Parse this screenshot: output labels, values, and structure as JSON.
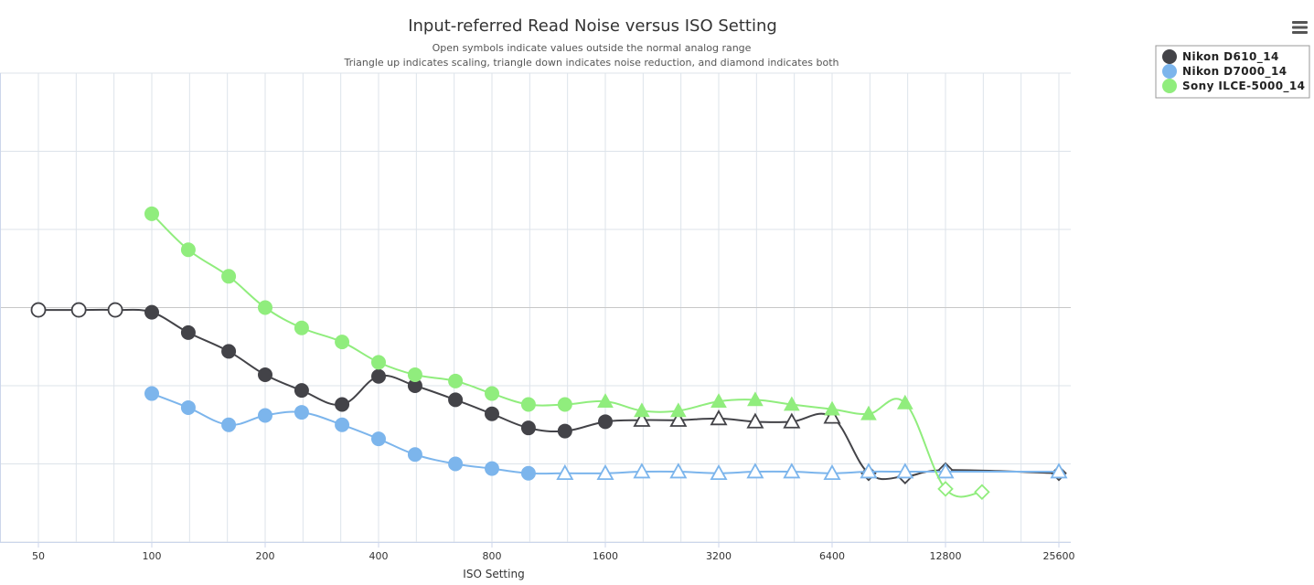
{
  "chart_data": {
    "type": "line",
    "title": "Input-referred Read Noise versus ISO Setting",
    "subtitle_lines": [
      "Open symbols indicate values outside the normal analog range",
      "Triangle up indicates scaling, triangle down indicates noise reduction, and diamond indicates both"
    ],
    "xlabel": "ISO Setting",
    "ylabel": "",
    "x_scale": "log2",
    "xlim": [
      50,
      25600
    ],
    "x_ticks": [
      50,
      100,
      200,
      400,
      800,
      1600,
      3200,
      6400,
      12800,
      25600
    ],
    "x_tick_labels": [
      "50",
      "100",
      "200",
      "400",
      "800",
      "1600",
      "3200",
      "6400",
      "12800",
      "25600"
    ],
    "y_scale": "log",
    "ylim_decades": [
      -1.5,
      1.5
    ],
    "y_gridlines_at_half_decades": true,
    "grid": true,
    "legend_position": "top-right",
    "menu_icon": "hamburger-menu-icon",
    "series": [
      {
        "name": "Nikon D610_14",
        "color": "#434348",
        "points": [
          {
            "x": 50,
            "y_decade": -0.015,
            "marker": "circle",
            "open": true
          },
          {
            "x": 64,
            "y_decade": -0.015,
            "marker": "circle",
            "open": true
          },
          {
            "x": 80,
            "y_decade": -0.015,
            "marker": "circle",
            "open": true
          },
          {
            "x": 100,
            "y_decade": -0.03,
            "marker": "circle",
            "open": false
          },
          {
            "x": 125,
            "y_decade": -0.16,
            "marker": "circle",
            "open": false
          },
          {
            "x": 160,
            "y_decade": -0.28,
            "marker": "circle",
            "open": false
          },
          {
            "x": 200,
            "y_decade": -0.43,
            "marker": "circle",
            "open": false
          },
          {
            "x": 250,
            "y_decade": -0.53,
            "marker": "circle",
            "open": false
          },
          {
            "x": 320,
            "y_decade": -0.62,
            "marker": "circle",
            "open": false
          },
          {
            "x": 400,
            "y_decade": -0.44,
            "marker": "circle",
            "open": false
          },
          {
            "x": 500,
            "y_decade": -0.5,
            "marker": "circle",
            "open": false
          },
          {
            "x": 640,
            "y_decade": -0.59,
            "marker": "circle",
            "open": false
          },
          {
            "x": 800,
            "y_decade": -0.68,
            "marker": "circle",
            "open": false
          },
          {
            "x": 1000,
            "y_decade": -0.77,
            "marker": "circle",
            "open": false
          },
          {
            "x": 1250,
            "y_decade": -0.79,
            "marker": "circle",
            "open": false
          },
          {
            "x": 1600,
            "y_decade": -0.73,
            "marker": "circle",
            "open": false
          },
          {
            "x": 2000,
            "y_decade": -0.72,
            "marker": "triangle-up",
            "open": true
          },
          {
            "x": 2500,
            "y_decade": -0.72,
            "marker": "triangle-up",
            "open": true
          },
          {
            "x": 3200,
            "y_decade": -0.71,
            "marker": "triangle-up",
            "open": true
          },
          {
            "x": 4000,
            "y_decade": -0.73,
            "marker": "triangle-up",
            "open": true
          },
          {
            "x": 5000,
            "y_decade": -0.73,
            "marker": "triangle-up",
            "open": true
          },
          {
            "x": 6400,
            "y_decade": -0.7,
            "marker": "triangle-up",
            "open": true
          },
          {
            "x": 8000,
            "y_decade": -1.06,
            "marker": "diamond",
            "open": true
          },
          {
            "x": 10000,
            "y_decade": -1.08,
            "marker": "diamond",
            "open": true
          },
          {
            "x": 12800,
            "y_decade": -1.04,
            "marker": "diamond",
            "open": true
          },
          {
            "x": 25600,
            "y_decade": -1.06,
            "marker": "diamond",
            "open": true
          }
        ]
      },
      {
        "name": "Nikon D7000_14",
        "color": "#7cb5ec",
        "points": [
          {
            "x": 100,
            "y_decade": -0.55,
            "marker": "circle",
            "open": false
          },
          {
            "x": 125,
            "y_decade": -0.64,
            "marker": "circle",
            "open": false
          },
          {
            "x": 160,
            "y_decade": -0.75,
            "marker": "circle",
            "open": false
          },
          {
            "x": 200,
            "y_decade": -0.69,
            "marker": "circle",
            "open": false
          },
          {
            "x": 250,
            "y_decade": -0.67,
            "marker": "circle",
            "open": false
          },
          {
            "x": 320,
            "y_decade": -0.75,
            "marker": "circle",
            "open": false
          },
          {
            "x": 400,
            "y_decade": -0.84,
            "marker": "circle",
            "open": false
          },
          {
            "x": 500,
            "y_decade": -0.94,
            "marker": "circle",
            "open": false
          },
          {
            "x": 640,
            "y_decade": -1.0,
            "marker": "circle",
            "open": false
          },
          {
            "x": 800,
            "y_decade": -1.03,
            "marker": "circle",
            "open": false
          },
          {
            "x": 1000,
            "y_decade": -1.06,
            "marker": "circle",
            "open": false
          },
          {
            "x": 1250,
            "y_decade": -1.06,
            "marker": "triangle-up",
            "open": true
          },
          {
            "x": 1600,
            "y_decade": -1.06,
            "marker": "triangle-up",
            "open": true
          },
          {
            "x": 2000,
            "y_decade": -1.05,
            "marker": "triangle-up",
            "open": true
          },
          {
            "x": 2500,
            "y_decade": -1.05,
            "marker": "triangle-up",
            "open": true
          },
          {
            "x": 3200,
            "y_decade": -1.06,
            "marker": "triangle-up",
            "open": true
          },
          {
            "x": 4000,
            "y_decade": -1.05,
            "marker": "triangle-up",
            "open": true
          },
          {
            "x": 5000,
            "y_decade": -1.05,
            "marker": "triangle-up",
            "open": true
          },
          {
            "x": 6400,
            "y_decade": -1.06,
            "marker": "triangle-up",
            "open": true
          },
          {
            "x": 8000,
            "y_decade": -1.05,
            "marker": "triangle-up",
            "open": true
          },
          {
            "x": 10000,
            "y_decade": -1.05,
            "marker": "triangle-up",
            "open": true
          },
          {
            "x": 12800,
            "y_decade": -1.05,
            "marker": "triangle-up",
            "open": true
          },
          {
            "x": 25600,
            "y_decade": -1.05,
            "marker": "triangle-up",
            "open": true
          }
        ]
      },
      {
        "name": "Sony ILCE-5000_14",
        "color": "#90ed7d",
        "points": [
          {
            "x": 100,
            "y_decade": 0.6,
            "marker": "circle",
            "open": false
          },
          {
            "x": 125,
            "y_decade": 0.37,
            "marker": "circle",
            "open": false
          },
          {
            "x": 160,
            "y_decade": 0.2,
            "marker": "circle",
            "open": false
          },
          {
            "x": 200,
            "y_decade": 0.0,
            "marker": "circle",
            "open": false
          },
          {
            "x": 250,
            "y_decade": -0.13,
            "marker": "circle",
            "open": false
          },
          {
            "x": 320,
            "y_decade": -0.22,
            "marker": "circle",
            "open": false
          },
          {
            "x": 400,
            "y_decade": -0.35,
            "marker": "circle",
            "open": false
          },
          {
            "x": 500,
            "y_decade": -0.43,
            "marker": "circle",
            "open": false
          },
          {
            "x": 640,
            "y_decade": -0.47,
            "marker": "circle",
            "open": false
          },
          {
            "x": 800,
            "y_decade": -0.55,
            "marker": "circle",
            "open": false
          },
          {
            "x": 1000,
            "y_decade": -0.62,
            "marker": "circle",
            "open": false
          },
          {
            "x": 1250,
            "y_decade": -0.62,
            "marker": "circle",
            "open": false
          },
          {
            "x": 1600,
            "y_decade": -0.6,
            "marker": "triangle-up",
            "open": false
          },
          {
            "x": 2000,
            "y_decade": -0.66,
            "marker": "triangle-up",
            "open": false
          },
          {
            "x": 2500,
            "y_decade": -0.66,
            "marker": "triangle-up",
            "open": false
          },
          {
            "x": 3200,
            "y_decade": -0.6,
            "marker": "triangle-up",
            "open": false
          },
          {
            "x": 4000,
            "y_decade": -0.59,
            "marker": "triangle-up",
            "open": false
          },
          {
            "x": 5000,
            "y_decade": -0.62,
            "marker": "triangle-up",
            "open": false
          },
          {
            "x": 6400,
            "y_decade": -0.65,
            "marker": "triangle-up",
            "open": false
          },
          {
            "x": 8000,
            "y_decade": -0.68,
            "marker": "triangle-up",
            "open": false
          },
          {
            "x": 10000,
            "y_decade": -0.61,
            "marker": "triangle-up",
            "open": false
          },
          {
            "x": 12800,
            "y_decade": -1.16,
            "marker": "diamond",
            "open": true
          },
          {
            "x": 16000,
            "y_decade": -1.18,
            "marker": "diamond",
            "open": true
          }
        ]
      }
    ]
  }
}
